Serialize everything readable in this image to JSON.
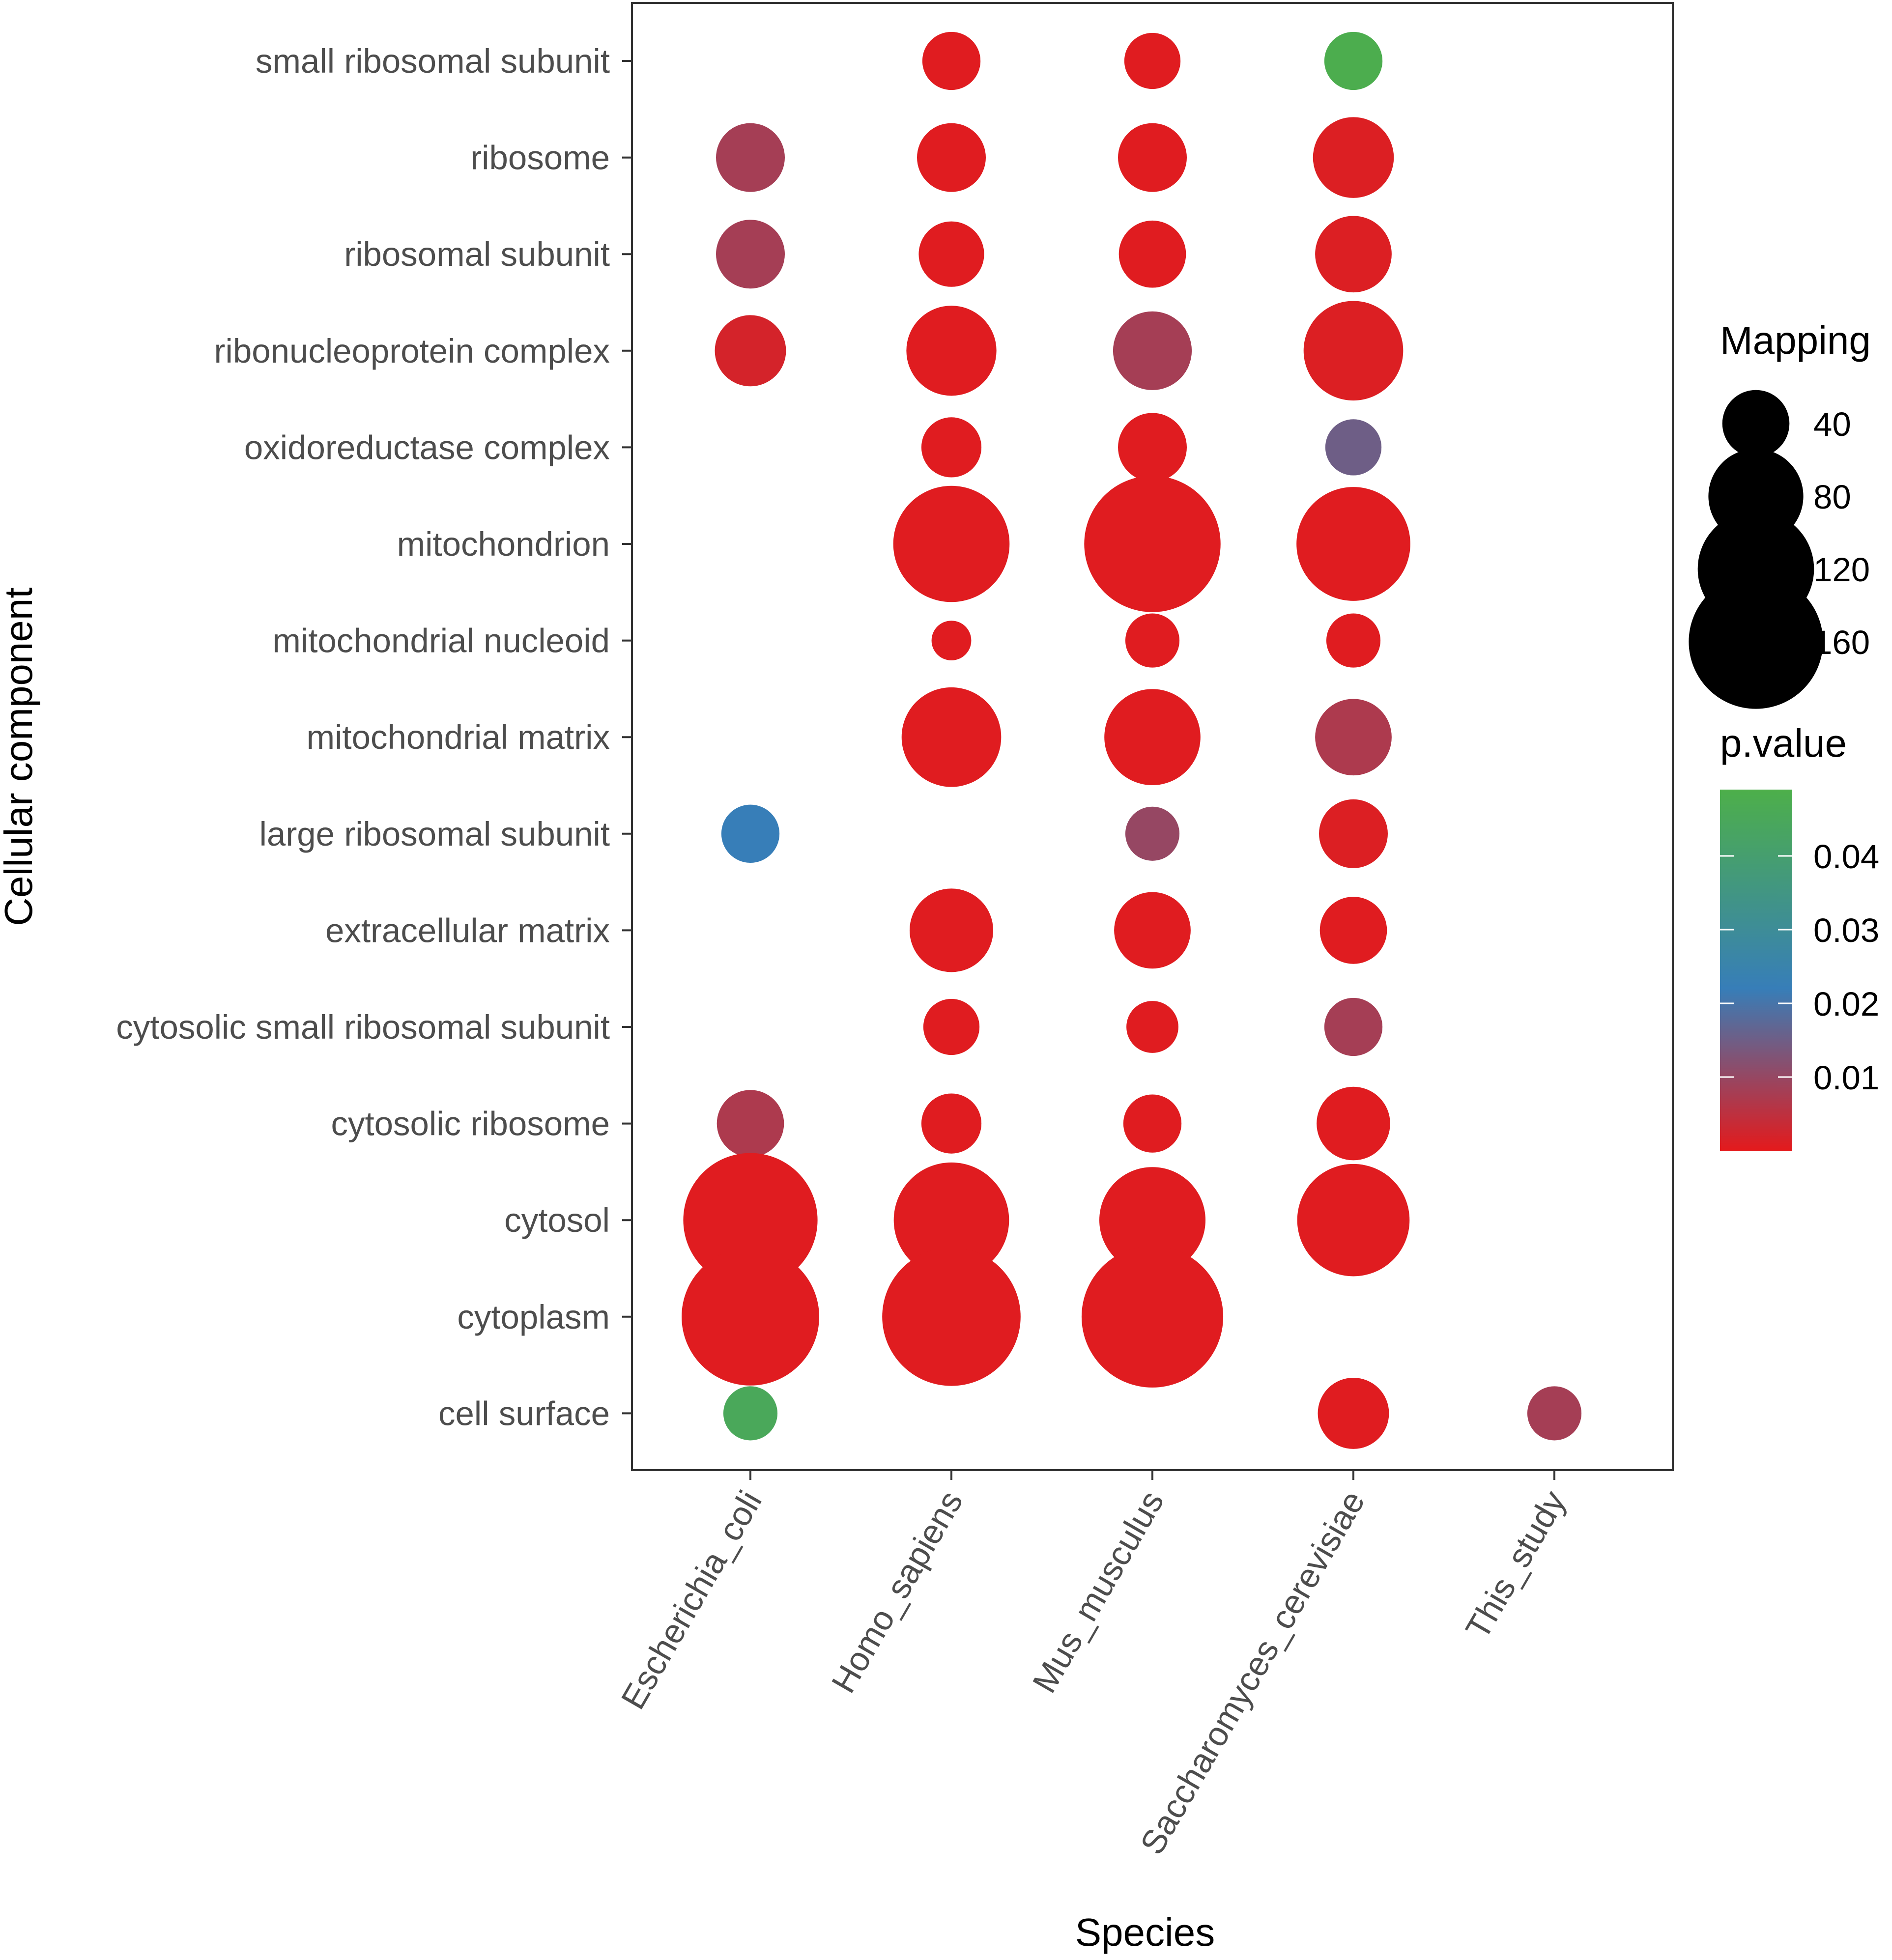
{
  "chart_data": {
    "type": "scatter",
    "title": "",
    "xlabel": "Species",
    "ylabel": "Cellular component",
    "categories_x": [
      "Escherichia_coli",
      "Homo_sapiens",
      "Mus_musculus",
      "Saccharomyces_cerevisiae",
      "This_study"
    ],
    "categories_y": [
      "small ribosomal subunit",
      "ribosome",
      "ribosomal subunit",
      "ribonucleoprotein complex",
      "oxidoreductase complex",
      "mitochondrion",
      "mitochondrial nucleoid",
      "mitochondrial matrix",
      "large ribosomal subunit",
      "extracellular matrix",
      "cytosolic small ribosomal subunit",
      "cytosolic ribosome",
      "cytosol",
      "cytoplasm",
      "cell surface"
    ],
    "points": [
      {
        "x": "Homo_sapiens",
        "y": "small ribosomal subunit",
        "mapping": 30,
        "pvalue": 0.0005
      },
      {
        "x": "Mus_musculus",
        "y": "small ribosomal subunit",
        "mapping": 28,
        "pvalue": 0.0005
      },
      {
        "x": "Saccharomyces_cerevisiae",
        "y": "small ribosomal subunit",
        "mapping": 30,
        "pvalue": 0.048
      },
      {
        "x": "Escherichia_coli",
        "y": "ribosome",
        "mapping": 42,
        "pvalue": 0.008
      },
      {
        "x": "Homo_sapiens",
        "y": "ribosome",
        "mapping": 42,
        "pvalue": 0.0005
      },
      {
        "x": "Mus_musculus",
        "y": "ribosome",
        "mapping": 42,
        "pvalue": 0.0005
      },
      {
        "x": "Saccharomyces_cerevisiae",
        "y": "ribosome",
        "mapping": 58,
        "pvalue": 0.001
      },
      {
        "x": "Escherichia_coli",
        "y": "ribosomal subunit",
        "mapping": 42,
        "pvalue": 0.008
      },
      {
        "x": "Homo_sapiens",
        "y": "ribosomal subunit",
        "mapping": 38,
        "pvalue": 0.0005
      },
      {
        "x": "Mus_musculus",
        "y": "ribosomal subunit",
        "mapping": 40,
        "pvalue": 0.0005
      },
      {
        "x": "Saccharomyces_cerevisiae",
        "y": "ribosomal subunit",
        "mapping": 52,
        "pvalue": 0.001
      },
      {
        "x": "Escherichia_coli",
        "y": "ribonucleoprotein complex",
        "mapping": 45,
        "pvalue": 0.002
      },
      {
        "x": "Homo_sapiens",
        "y": "ribonucleoprotein complex",
        "mapping": 72,
        "pvalue": 0.0005
      },
      {
        "x": "Mus_musculus",
        "y": "ribonucleoprotein complex",
        "mapping": 55,
        "pvalue": 0.008
      },
      {
        "x": "Saccharomyces_cerevisiae",
        "y": "ribonucleoprotein complex",
        "mapping": 88,
        "pvalue": 0.001
      },
      {
        "x": "Homo_sapiens",
        "y": "oxidoreductase complex",
        "mapping": 32,
        "pvalue": 0.0005
      },
      {
        "x": "Mus_musculus",
        "y": "oxidoreductase complex",
        "mapping": 42,
        "pvalue": 0.0005
      },
      {
        "x": "Saccharomyces_cerevisiae",
        "y": "oxidoreductase complex",
        "mapping": 28,
        "pvalue": 0.015
      },
      {
        "x": "Homo_sapiens",
        "y": "mitochondrion",
        "mapping": 120,
        "pvalue": 0.0005
      },
      {
        "x": "Mus_musculus",
        "y": "mitochondrion",
        "mapping": 165,
        "pvalue": 0.0005
      },
      {
        "x": "Saccharomyces_cerevisiae",
        "y": "mitochondrion",
        "mapping": 115,
        "pvalue": 0.0005
      },
      {
        "x": "Homo_sapiens",
        "y": "mitochondrial nucleoid",
        "mapping": 14,
        "pvalue": 0.0005
      },
      {
        "x": "Mus_musculus",
        "y": "mitochondrial nucleoid",
        "mapping": 26,
        "pvalue": 0.0005
      },
      {
        "x": "Saccharomyces_cerevisiae",
        "y": "mitochondrial nucleoid",
        "mapping": 26,
        "pvalue": 0.0005
      },
      {
        "x": "Homo_sapiens",
        "y": "mitochondrial matrix",
        "mapping": 88,
        "pvalue": 0.0005
      },
      {
        "x": "Mus_musculus",
        "y": "mitochondrial matrix",
        "mapping": 82,
        "pvalue": 0.0005
      },
      {
        "x": "Saccharomyces_cerevisiae",
        "y": "mitochondrial matrix",
        "mapping": 52,
        "pvalue": 0.007
      },
      {
        "x": "Escherichia_coli",
        "y": "large ribosomal subunit",
        "mapping": 30,
        "pvalue": 0.022
      },
      {
        "x": "Mus_musculus",
        "y": "large ribosomal subunit",
        "mapping": 26,
        "pvalue": 0.01
      },
      {
        "x": "Saccharomyces_cerevisiae",
        "y": "large ribosomal subunit",
        "mapping": 42,
        "pvalue": 0.001
      },
      {
        "x": "Homo_sapiens",
        "y": "extracellular matrix",
        "mapping": 62,
        "pvalue": 0.0005
      },
      {
        "x": "Mus_musculus",
        "y": "extracellular matrix",
        "mapping": 52,
        "pvalue": 0.0005
      },
      {
        "x": "Saccharomyces_cerevisiae",
        "y": "extracellular matrix",
        "mapping": 40,
        "pvalue": 0.0005
      },
      {
        "x": "Homo_sapiens",
        "y": "cytosolic small ribosomal subunit",
        "mapping": 28,
        "pvalue": 0.0005
      },
      {
        "x": "Mus_musculus",
        "y": "cytosolic small ribosomal subunit",
        "mapping": 24,
        "pvalue": 0.0005
      },
      {
        "x": "Saccharomyces_cerevisiae",
        "y": "cytosolic small ribosomal subunit",
        "mapping": 30,
        "pvalue": 0.008
      },
      {
        "x": "Escherichia_coli",
        "y": "cytosolic ribosome",
        "mapping": 40,
        "pvalue": 0.007
      },
      {
        "x": "Homo_sapiens",
        "y": "cytosolic ribosome",
        "mapping": 32,
        "pvalue": 0.0005
      },
      {
        "x": "Mus_musculus",
        "y": "cytosolic ribosome",
        "mapping": 30,
        "pvalue": 0.0005
      },
      {
        "x": "Saccharomyces_cerevisiae",
        "y": "cytosolic ribosome",
        "mapping": 48,
        "pvalue": 0.0005
      },
      {
        "x": "Escherichia_coli",
        "y": "cytosol",
        "mapping": 160,
        "pvalue": 0.0005
      },
      {
        "x": "Homo_sapiens",
        "y": "cytosol",
        "mapping": 118,
        "pvalue": 0.0005
      },
      {
        "x": "Mus_musculus",
        "y": "cytosol",
        "mapping": 100,
        "pvalue": 0.0005
      },
      {
        "x": "Saccharomyces_cerevisiae",
        "y": "cytosol",
        "mapping": 112,
        "pvalue": 0.0005
      },
      {
        "x": "Escherichia_coli",
        "y": "cytoplasm",
        "mapping": 168,
        "pvalue": 0.0005
      },
      {
        "x": "Homo_sapiens",
        "y": "cytoplasm",
        "mapping": 170,
        "pvalue": 0.0005
      },
      {
        "x": "Mus_musculus",
        "y": "cytoplasm",
        "mapping": 178,
        "pvalue": 0.0005
      },
      {
        "x": "Escherichia_coli",
        "y": "cell surface",
        "mapping": 26,
        "pvalue": 0.045
      },
      {
        "x": "Saccharomyces_cerevisiae",
        "y": "cell surface",
        "mapping": 45,
        "pvalue": 0.0005
      },
      {
        "x": "This_study",
        "y": "cell surface",
        "mapping": 26,
        "pvalue": 0.008
      }
    ],
    "size_legend": {
      "title": "Mapping",
      "breaks": [
        40,
        80,
        120,
        160
      ],
      "labels": [
        "40",
        "80",
        "120",
        "160"
      ]
    },
    "color_legend": {
      "title": "p.value",
      "min": 0,
      "max": 0.049,
      "breaks": [
        0.01,
        0.02,
        0.03,
        0.04
      ],
      "labels": [
        "0.01",
        "0.02",
        "0.03",
        "0.04"
      ],
      "colors": {
        "low": "#e41a1c",
        "mid": "#377eb8",
        "high": "#4daf4a"
      }
    }
  }
}
